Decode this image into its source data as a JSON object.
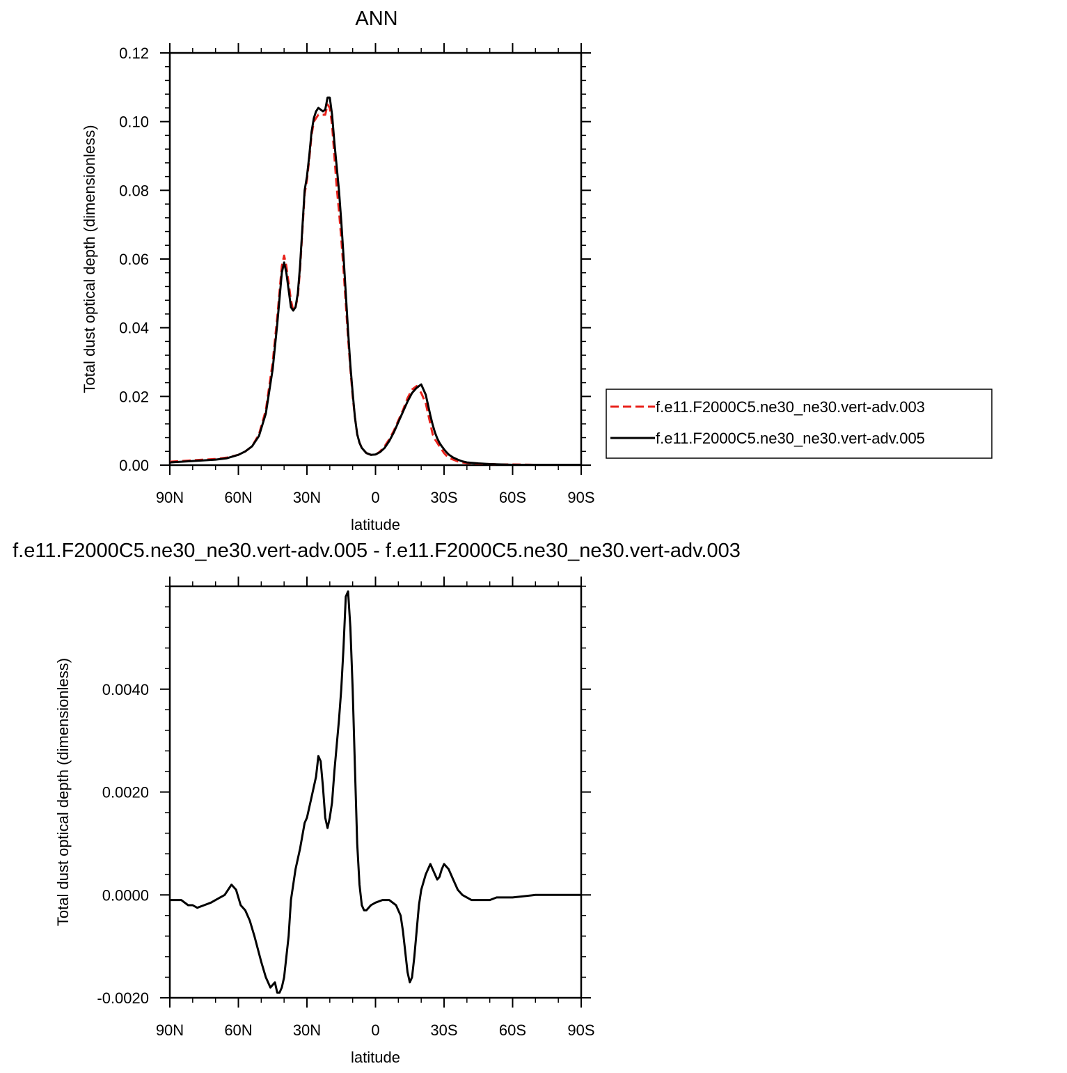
{
  "chart_data": [
    {
      "type": "line",
      "title": "ANN",
      "xlabel": "latitude",
      "ylabel": "Total dust optical depth (dimensionless)",
      "xlim": [
        90,
        -90
      ],
      "ylim": [
        0.0,
        0.12
      ],
      "xticks": [
        90,
        60,
        30,
        0,
        -30,
        -60,
        -90
      ],
      "xtick_labels": [
        "90N",
        "60N",
        "30N",
        "0",
        "30S",
        "60S",
        "90S"
      ],
      "yticks": [
        0.0,
        0.02,
        0.04,
        0.06,
        0.08,
        0.1,
        0.12
      ],
      "ytick_labels": [
        "0.00",
        "0.02",
        "0.04",
        "0.06",
        "0.08",
        "0.10",
        "0.12"
      ],
      "legend_position": "right",
      "series": [
        {
          "name": "f.e11.F2000C5.ne30_ne30.vert-adv.003",
          "color": "#e8231c",
          "dash": "dashed",
          "x": [
            90,
            85,
            80,
            75,
            70,
            65,
            60,
            57,
            54,
            51,
            48,
            45,
            43,
            41,
            40,
            39,
            38,
            37,
            36,
            35,
            34,
            33,
            32,
            31,
            30,
            29,
            28,
            27,
            26,
            25,
            24,
            23,
            22,
            21,
            20,
            19,
            18,
            17,
            16,
            15,
            14,
            13,
            12,
            11,
            10,
            9,
            8,
            7,
            6,
            4,
            2,
            0,
            -2,
            -4,
            -6,
            -8,
            -10,
            -12,
            -14,
            -16,
            -18,
            -20,
            -22,
            -23,
            -24,
            -25,
            -26,
            -27,
            -28,
            -29,
            -30,
            -31,
            -32,
            -34,
            -36,
            -38,
            -40,
            -45,
            -50,
            -55,
            -60,
            -70,
            -80,
            -90
          ],
          "values": [
            0.001,
            0.0012,
            0.0014,
            0.0016,
            0.0018,
            0.0022,
            0.003,
            0.004,
            0.0055,
            0.009,
            0.016,
            0.03,
            0.043,
            0.058,
            0.061,
            0.058,
            0.053,
            0.048,
            0.045,
            0.046,
            0.049,
            0.057,
            0.068,
            0.079,
            0.083,
            0.089,
            0.096,
            0.1,
            0.101,
            0.102,
            0.102,
            0.102,
            0.102,
            0.105,
            0.104,
            0.099,
            0.09,
            0.081,
            0.074,
            0.066,
            0.057,
            0.047,
            0.037,
            0.028,
            0.02,
            0.014,
            0.009,
            0.0065,
            0.005,
            0.0035,
            0.003,
            0.003,
            0.004,
            0.0055,
            0.0075,
            0.01,
            0.013,
            0.016,
            0.0195,
            0.022,
            0.023,
            0.021,
            0.018,
            0.015,
            0.012,
            0.009,
            0.0075,
            0.0065,
            0.0055,
            0.0045,
            0.0035,
            0.0028,
            0.0022,
            0.0016,
            0.0011,
            0.0008,
            0.0006,
            0.0004,
            0.0003,
            0.0002,
            0.0002,
            0.0001,
            0.0001,
            0.0001
          ]
        },
        {
          "name": "f.e11.F2000C5.ne30_ne30.vert-adv.005",
          "color": "#000000",
          "dash": "solid",
          "x": [
            90,
            85,
            80,
            75,
            70,
            65,
            60,
            57,
            54,
            51,
            48,
            45,
            43,
            41,
            40,
            39,
            38,
            37,
            36,
            35,
            34,
            33,
            32,
            31,
            30,
            29,
            28,
            27,
            26,
            25,
            24,
            23,
            22,
            21,
            20,
            19,
            18,
            17,
            16,
            15,
            14,
            13,
            12,
            11,
            10,
            9,
            8,
            7,
            6,
            4,
            2,
            0,
            -2,
            -4,
            -6,
            -8,
            -10,
            -12,
            -14,
            -16,
            -18,
            -20,
            -22,
            -23,
            -24,
            -25,
            -26,
            -27,
            -28,
            -29,
            -30,
            -31,
            -32,
            -34,
            -36,
            -38,
            -40,
            -45,
            -50,
            -55,
            -60,
            -70,
            -80,
            -90
          ],
          "values": [
            0.0008,
            0.001,
            0.0012,
            0.0014,
            0.0016,
            0.002,
            0.003,
            0.004,
            0.0055,
            0.0085,
            0.015,
            0.028,
            0.041,
            0.056,
            0.059,
            0.056,
            0.051,
            0.046,
            0.045,
            0.046,
            0.05,
            0.058,
            0.069,
            0.08,
            0.084,
            0.09,
            0.097,
            0.101,
            0.103,
            0.104,
            0.1035,
            0.103,
            0.1035,
            0.107,
            0.107,
            0.102,
            0.094,
            0.087,
            0.08,
            0.071,
            0.061,
            0.05,
            0.039,
            0.029,
            0.021,
            0.014,
            0.009,
            0.0065,
            0.005,
            0.0035,
            0.003,
            0.0031,
            0.0038,
            0.005,
            0.007,
            0.0095,
            0.0125,
            0.0155,
            0.0185,
            0.021,
            0.0225,
            0.0235,
            0.0205,
            0.0175,
            0.0145,
            0.0118,
            0.0095,
            0.0078,
            0.0065,
            0.0055,
            0.0046,
            0.0038,
            0.0031,
            0.0022,
            0.0016,
            0.0011,
            0.0008,
            0.0005,
            0.0003,
            0.0002,
            0.0001,
            0.0001,
            0.0001,
            0.0001
          ]
        }
      ]
    },
    {
      "type": "line",
      "title": "f.e11.F2000C5.ne30_ne30.vert-adv.005 - f.e11.F2000C5.ne30_ne30.vert-adv.003",
      "xlabel": "latitude",
      "ylabel": "Total dust optical depth (dimensionless)",
      "xlim": [
        90,
        -90
      ],
      "ylim": [
        -0.002,
        0.006
      ],
      "xticks": [
        90,
        60,
        30,
        0,
        -30,
        -60,
        -90
      ],
      "xtick_labels": [
        "90N",
        "60N",
        "30N",
        "0",
        "30S",
        "60S",
        "90S"
      ],
      "yticks": [
        -0.002,
        0.0,
        0.002,
        0.004
      ],
      "ytick_labels": [
        "-0.0020",
        "0.0000",
        "0.0020",
        "0.0040"
      ],
      "series": [
        {
          "color": "#000000",
          "dash": "solid",
          "x": [
            90,
            85,
            82,
            80,
            78,
            75,
            72,
            70,
            68,
            66,
            63,
            61,
            59,
            57,
            55,
            53,
            50,
            48,
            46,
            44,
            43,
            42,
            41,
            40,
            38,
            37,
            35,
            33,
            31,
            30,
            28,
            26,
            25,
            24,
            23,
            22,
            21,
            20,
            19,
            18,
            17,
            16,
            15,
            14,
            13,
            12,
            11,
            10,
            9,
            8,
            7,
            6,
            5,
            4,
            2,
            0,
            -3,
            -6,
            -9,
            -11,
            -12,
            -13,
            -14,
            -15,
            -16,
            -17,
            -18,
            -19,
            -20,
            -22,
            -24,
            -26,
            -27,
            -28,
            -29,
            -30,
            -32,
            -34,
            -36,
            -38,
            -40,
            -42,
            -45,
            -48,
            -50,
            -53,
            -56,
            -60,
            -70,
            -80,
            -90
          ],
          "values": [
            -0.0001,
            -0.0001,
            -0.0002,
            -0.0002,
            -0.00025,
            -0.0002,
            -0.00015,
            -0.0001,
            -5e-05,
            0.0,
            0.0002,
            0.0001,
            -0.0002,
            -0.0003,
            -0.0005,
            -0.0008,
            -0.0013,
            -0.0016,
            -0.0018,
            -0.0017,
            -0.0019,
            -0.0019,
            -0.0018,
            -0.0016,
            -0.0008,
            -0.0001,
            0.0005,
            0.0009,
            0.0014,
            0.0015,
            0.0019,
            0.0023,
            0.0027,
            0.0026,
            0.0021,
            0.0015,
            0.0013,
            0.0015,
            0.0018,
            0.0024,
            0.0029,
            0.0034,
            0.004,
            0.0048,
            0.0058,
            0.0059,
            0.0052,
            0.004,
            0.0025,
            0.001,
            0.0002,
            -0.0002,
            -0.0003,
            -0.0003,
            -0.0002,
            -0.00015,
            -0.0001,
            -0.0001,
            -0.0002,
            -0.0004,
            -0.0007,
            -0.0011,
            -0.0015,
            -0.0017,
            -0.0016,
            -0.0012,
            -0.0007,
            -0.0002,
            0.0001,
            0.0004,
            0.0006,
            0.0004,
            0.0003,
            0.00035,
            0.0005,
            0.0006,
            0.0005,
            0.0003,
            0.0001,
            0.0,
            -5e-05,
            -0.0001,
            -0.0001,
            -0.0001,
            -0.0001,
            -5e-05,
            -5e-05,
            -5e-05,
            0.0,
            0.0,
            0.0
          ]
        }
      ]
    }
  ]
}
